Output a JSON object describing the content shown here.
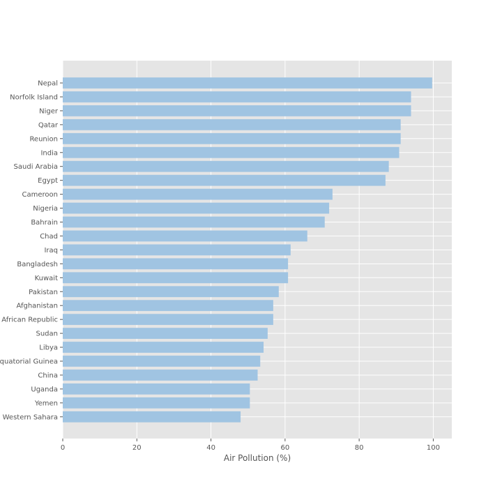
{
  "chart_data": {
    "type": "bar",
    "orientation": "horizontal",
    "xlabel": "Air Pollution (%)",
    "ylabel": "",
    "xlim": [
      0,
      105
    ],
    "xticks": [
      0,
      20,
      40,
      60,
      80,
      100
    ],
    "grid": true,
    "categories": [
      "Nepal",
      "Norfolk Island",
      "Niger",
      "Qatar",
      "Reunion",
      "India",
      "Saudi Arabia",
      "Egypt",
      "Cameroon",
      "Nigeria",
      "Bahrain",
      "Chad",
      "Iraq",
      "Bangladesh",
      "Kuwait",
      "Pakistan",
      "Afghanistan",
      "Central African Republic",
      "Sudan",
      "Libya",
      "Equatorial Guinea",
      "China",
      "Uganda",
      "Yemen",
      "Western Sahara"
    ],
    "values": [
      99.7,
      94.0,
      94.0,
      91.2,
      91.2,
      90.8,
      88.0,
      87.1,
      72.8,
      71.9,
      70.7,
      66.0,
      61.5,
      60.8,
      60.8,
      58.3,
      56.8,
      56.8,
      55.3,
      54.2,
      53.3,
      52.6,
      50.5,
      50.5,
      48.0
    ],
    "colors": {
      "bar": "#a0c4e2",
      "plot_bg": "#e5e5e5",
      "grid": "#ffffff",
      "text": "#555555"
    }
  }
}
